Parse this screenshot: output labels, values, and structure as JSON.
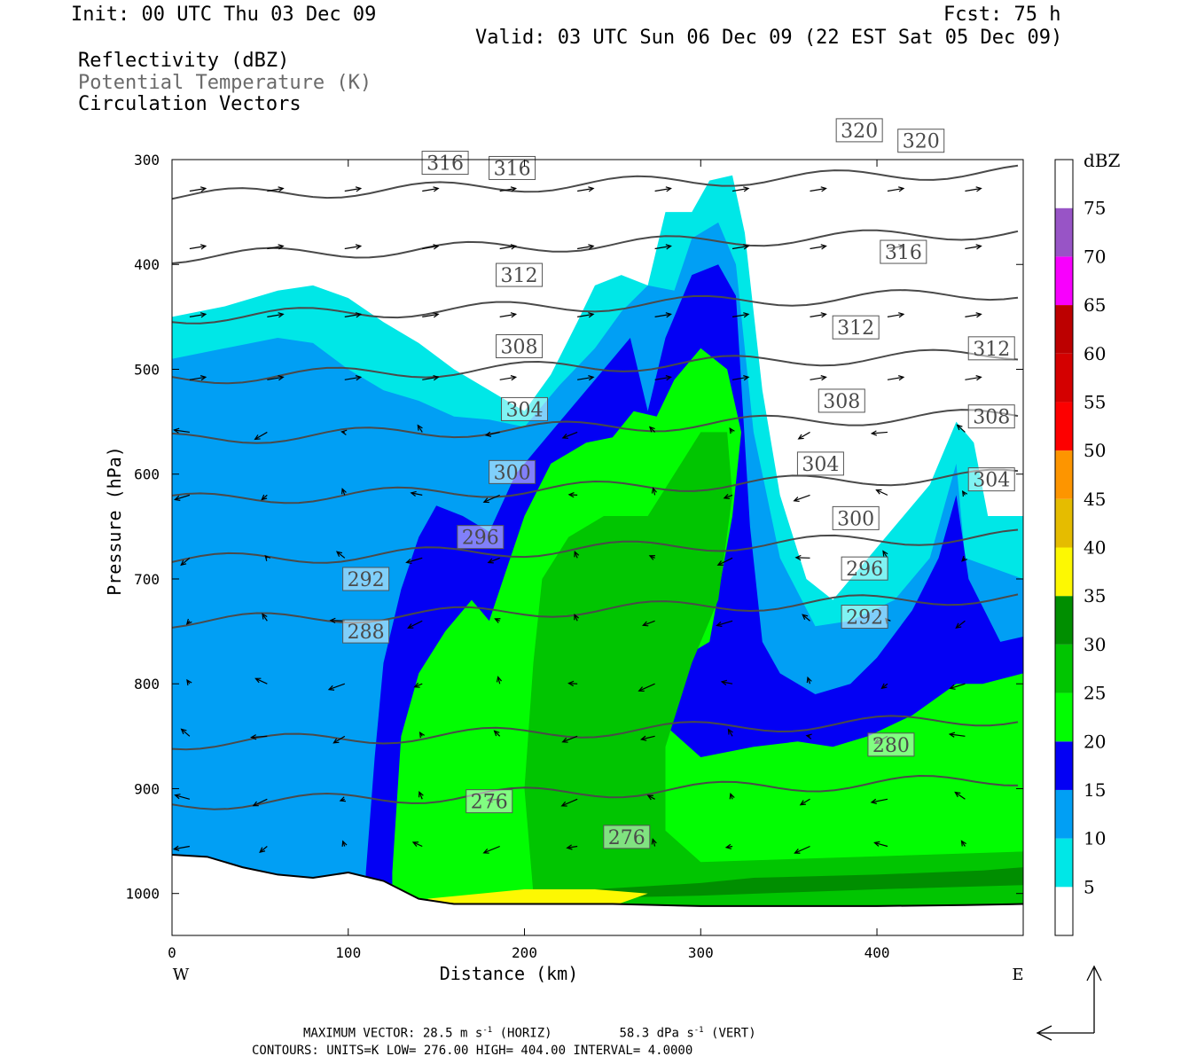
{
  "header": {
    "init": "Init: 00 UTC Thu 03 Dec 09",
    "fcst": "Fcst:   75 h",
    "valid": "Valid: 03 UTC Sun 06 Dec 09 (22 EST Sat 05 Dec 09)",
    "field1": "Reflectivity (dBZ)",
    "field2": "Potential Temperature (K)",
    "field3": "Circulation Vectors"
  },
  "footer": {
    "max_vector_label": "MAXIMUM VECTOR:",
    "max_vector_horiz": "28.5 m s",
    "horiz_tag": "(HORIZ)",
    "max_vector_vert": "58.3 dPa s",
    "vert_tag": "(VERT)",
    "contours": "CONTOURS:  UNITS=K  LOW=  276.00      HIGH=  404.00      INTERVAL=    4.0000"
  },
  "chart_data": {
    "type": "cross-section",
    "xlabel": "Distance (km)",
    "ylabel": "Pressure (hPa)",
    "xlim": [
      0,
      483
    ],
    "ylim": [
      1040,
      300
    ],
    "x_ticks": [
      0,
      100,
      200,
      300,
      400
    ],
    "y_ticks": [
      300,
      400,
      500,
      600,
      700,
      800,
      900,
      1000
    ],
    "x_end_labels": {
      "left": "W",
      "right": "E"
    },
    "colorbar": {
      "title": "dBZ",
      "levels": [
        5,
        10,
        15,
        20,
        25,
        30,
        35,
        40,
        45,
        50,
        55,
        60,
        65,
        70,
        75
      ],
      "colors": [
        "#ffffff",
        "#00e7e7",
        "#019ff4",
        "#0300f4",
        "#02fd02",
        "#01c501",
        "#008e00",
        "#fdf802",
        "#e5bc00",
        "#fd9500",
        "#fd0000",
        "#d40000",
        "#bc0000",
        "#f800fd",
        "#9854c6",
        "#ffffff"
      ]
    },
    "terrain_hpa": [
      [
        0,
        963
      ],
      [
        20,
        965
      ],
      [
        40,
        975
      ],
      [
        60,
        982
      ],
      [
        80,
        985
      ],
      [
        100,
        980
      ],
      [
        120,
        988
      ],
      [
        140,
        1005
      ],
      [
        160,
        1010
      ],
      [
        200,
        1010
      ],
      [
        250,
        1010
      ],
      [
        300,
        1012
      ],
      [
        350,
        1012
      ],
      [
        400,
        1012
      ],
      [
        450,
        1011
      ],
      [
        483,
        1010
      ]
    ],
    "reflectivity_regions": [
      {
        "dbz": 5,
        "outline": [
          [
            0,
            450
          ],
          [
            30,
            440
          ],
          [
            60,
            425
          ],
          [
            80,
            420
          ],
          [
            100,
            432
          ],
          [
            120,
            455
          ],
          [
            140,
            475
          ],
          [
            160,
            500
          ],
          [
            180,
            520
          ],
          [
            200,
            540
          ],
          [
            215,
            505
          ],
          [
            230,
            455
          ],
          [
            240,
            420
          ],
          [
            255,
            410
          ],
          [
            270,
            420
          ],
          [
            280,
            350
          ],
          [
            295,
            350
          ],
          [
            305,
            320
          ],
          [
            318,
            315
          ],
          [
            325,
            370
          ],
          [
            335,
            520
          ],
          [
            345,
            620
          ],
          [
            360,
            700
          ],
          [
            375,
            720
          ],
          [
            390,
            690
          ],
          [
            410,
            650
          ],
          [
            430,
            610
          ],
          [
            445,
            550
          ],
          [
            455,
            570
          ],
          [
            463,
            640
          ],
          [
            483,
            640
          ],
          [
            483,
            1040
          ],
          [
            0,
            1040
          ]
        ]
      },
      {
        "dbz": 10,
        "outline": [
          [
            0,
            490
          ],
          [
            30,
            480
          ],
          [
            60,
            470
          ],
          [
            80,
            475
          ],
          [
            100,
            500
          ],
          [
            120,
            520
          ],
          [
            140,
            530
          ],
          [
            160,
            545
          ],
          [
            180,
            548
          ],
          [
            200,
            555
          ],
          [
            220,
            515
          ],
          [
            240,
            480
          ],
          [
            255,
            445
          ],
          [
            270,
            420
          ],
          [
            285,
            425
          ],
          [
            295,
            375
          ],
          [
            310,
            360
          ],
          [
            320,
            400
          ],
          [
            330,
            560
          ],
          [
            345,
            680
          ],
          [
            365,
            745
          ],
          [
            385,
            740
          ],
          [
            410,
            720
          ],
          [
            430,
            680
          ],
          [
            445,
            590
          ],
          [
            450,
            680
          ],
          [
            483,
            700
          ],
          [
            483,
            1040
          ],
          [
            0,
            1040
          ]
        ]
      },
      {
        "dbz": 15,
        "outline": [
          [
            110,
            980
          ],
          [
            115,
            870
          ],
          [
            120,
            780
          ],
          [
            130,
            710
          ],
          [
            140,
            660
          ],
          [
            150,
            630
          ],
          [
            165,
            640
          ],
          [
            180,
            655
          ],
          [
            195,
            600
          ],
          [
            215,
            560
          ],
          [
            235,
            520
          ],
          [
            250,
            490
          ],
          [
            260,
            470
          ],
          [
            270,
            540
          ],
          [
            280,
            470
          ],
          [
            295,
            410
          ],
          [
            310,
            400
          ],
          [
            320,
            430
          ],
          [
            328,
            650
          ],
          [
            335,
            760
          ],
          [
            345,
            790
          ],
          [
            365,
            810
          ],
          [
            385,
            800
          ],
          [
            400,
            775
          ],
          [
            420,
            730
          ],
          [
            435,
            680
          ],
          [
            445,
            620
          ],
          [
            452,
            700
          ],
          [
            470,
            760
          ],
          [
            483,
            755
          ],
          [
            483,
            1040
          ],
          [
            110,
            1040
          ]
        ]
      },
      {
        "dbz": 20,
        "outline": [
          [
            125,
            980
          ],
          [
            130,
            850
          ],
          [
            140,
            790
          ],
          [
            155,
            750
          ],
          [
            170,
            720
          ],
          [
            180,
            740
          ],
          [
            190,
            690
          ],
          [
            200,
            640
          ],
          [
            215,
            590
          ],
          [
            235,
            570
          ],
          [
            250,
            565
          ],
          [
            262,
            540
          ],
          [
            275,
            545
          ],
          [
            285,
            510
          ],
          [
            300,
            480
          ],
          [
            315,
            500
          ],
          [
            323,
            560
          ],
          [
            318,
            640
          ],
          [
            305,
            760
          ],
          [
            285,
            780
          ],
          [
            275,
            800
          ],
          [
            280,
            840
          ],
          [
            300,
            870
          ],
          [
            330,
            860
          ],
          [
            355,
            855
          ],
          [
            375,
            860
          ],
          [
            395,
            850
          ],
          [
            420,
            830
          ],
          [
            445,
            800
          ],
          [
            460,
            800
          ],
          [
            483,
            790
          ],
          [
            483,
            1040
          ],
          [
            125,
            1040
          ]
        ]
      },
      {
        "dbz": 25,
        "outline": [
          [
            205,
            1000
          ],
          [
            200,
            900
          ],
          [
            205,
            780
          ],
          [
            210,
            700
          ],
          [
            225,
            660
          ],
          [
            245,
            640
          ],
          [
            270,
            640
          ],
          [
            285,
            600
          ],
          [
            300,
            560
          ],
          [
            315,
            560
          ],
          [
            318,
            620
          ],
          [
            310,
            720
          ],
          [
            295,
            780
          ],
          [
            280,
            860
          ],
          [
            280,
            940
          ],
          [
            300,
            970
          ],
          [
            483,
            960
          ],
          [
            483,
            1040
          ],
          [
            205,
            1040
          ]
        ]
      },
      {
        "dbz": 30,
        "outline": [
          [
            220,
            998
          ],
          [
            300,
            990
          ],
          [
            330,
            985
          ],
          [
            400,
            982
          ],
          [
            460,
            978
          ],
          [
            483,
            975
          ],
          [
            483,
            992
          ],
          [
            400,
            996
          ],
          [
            300,
            1002
          ],
          [
            220,
            1005
          ]
        ]
      },
      {
        "dbz": 35,
        "outline": [
          [
            145,
            1005
          ],
          [
            200,
            996
          ],
          [
            240,
            996
          ],
          [
            270,
            1000
          ],
          [
            250,
            1012
          ],
          [
            200,
            1015
          ],
          [
            150,
            1012
          ]
        ]
      }
    ],
    "theta_isolines": [
      {
        "value": 276,
        "label_at": [
          [
            180,
            912
          ],
          [
            258,
            946
          ]
        ]
      },
      {
        "value": 280,
        "label_at": [
          [
            408,
            858
          ]
        ]
      },
      {
        "value": 288,
        "label_at": [
          [
            110,
            750
          ]
        ]
      },
      {
        "value": 292,
        "label_at": [
          [
            110,
            700
          ],
          [
            393,
            736
          ]
        ]
      },
      {
        "value": 296,
        "label_at": [
          [
            175,
            660
          ],
          [
            393,
            690
          ]
        ]
      },
      {
        "value": 300,
        "label_at": [
          [
            193,
            598
          ],
          [
            388,
            642
          ]
        ]
      },
      {
        "value": 304,
        "label_at": [
          [
            200,
            538
          ],
          [
            368,
            590
          ],
          [
            465,
            605
          ]
        ]
      },
      {
        "value": 308,
        "label_at": [
          [
            197,
            478
          ],
          [
            380,
            530
          ],
          [
            465,
            545
          ]
        ]
      },
      {
        "value": 312,
        "label_at": [
          [
            197,
            410
          ],
          [
            388,
            460
          ],
          [
            465,
            480
          ]
        ]
      },
      {
        "value": 316,
        "label_at": [
          [
            155,
            303
          ],
          [
            193,
            308
          ],
          [
            415,
            388
          ]
        ]
      },
      {
        "value": 320,
        "label_at": [
          [
            390,
            272
          ],
          [
            425,
            282
          ]
        ]
      }
    ]
  }
}
